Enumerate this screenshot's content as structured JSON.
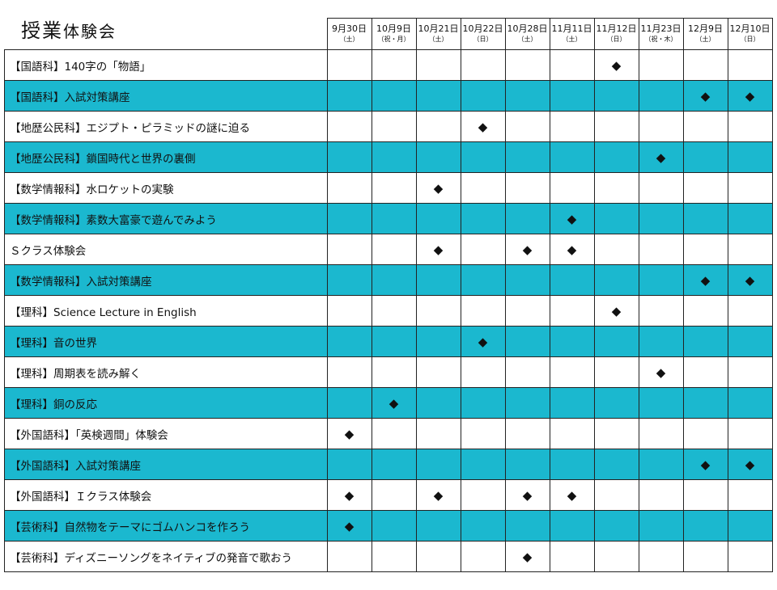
{
  "title_main": "授業",
  "title_sub": "体験会",
  "colors": {
    "teal": "#1bb8cf"
  },
  "marker_icon": "black-diamond",
  "dates": [
    {
      "date": "9月30日",
      "weekday": "（土）"
    },
    {
      "date": "10月9日",
      "weekday": "（祝・月）"
    },
    {
      "date": "10月21日",
      "weekday": "（土）"
    },
    {
      "date": "10月22日",
      "weekday": "（日）"
    },
    {
      "date": "10月28日",
      "weekday": "（土）"
    },
    {
      "date": "11月11日",
      "weekday": "（土）"
    },
    {
      "date": "11月12日",
      "weekday": "（日）"
    },
    {
      "date": "11月23日",
      "weekday": "（祝・木）"
    },
    {
      "date": "12月9日",
      "weekday": "（土）"
    },
    {
      "date": "12月10日",
      "weekday": "（日）"
    }
  ],
  "rows": [
    {
      "label": "【国語科】140字の「物語」",
      "marks": [
        6
      ]
    },
    {
      "label": "【国語科】入試対策講座",
      "marks": [
        8,
        9
      ]
    },
    {
      "label": "【地歴公民科】エジプト・ピラミッドの謎に迫る",
      "marks": [
        3
      ]
    },
    {
      "label": "【地歴公民科】鎖国時代と世界の裏側",
      "marks": [
        7
      ]
    },
    {
      "label": "【数学情報科】水ロケットの実験",
      "marks": [
        2
      ]
    },
    {
      "label": "【数学情報科】素数大富豪で遊んでみよう",
      "marks": [
        5
      ]
    },
    {
      "label": "Ｓクラス体験会",
      "marks": [
        2,
        4,
        5
      ]
    },
    {
      "label": "【数学情報科】入試対策講座",
      "marks": [
        8,
        9
      ]
    },
    {
      "label": "【理科】Science Lecture in English",
      "marks": [
        6
      ]
    },
    {
      "label": "【理科】音の世界",
      "marks": [
        3
      ]
    },
    {
      "label": "【理科】周期表を読み解く",
      "marks": [
        7
      ]
    },
    {
      "label": "【理科】銅の反応",
      "marks": [
        1
      ]
    },
    {
      "label": "【外国語科】「英検週間」体験会",
      "marks": [
        0
      ]
    },
    {
      "label": "【外国語科】入試対策講座",
      "marks": [
        8,
        9
      ]
    },
    {
      "label": "【外国語科】Ｉクラス体験会",
      "marks": [
        0,
        2,
        4,
        5
      ]
    },
    {
      "label": "【芸術科】自然物をテーマにゴムハンコを作ろう",
      "marks": [
        0
      ]
    },
    {
      "label": "【芸術科】ディズニーソングをネイティブの発音で歌おう",
      "marks": [
        4
      ]
    }
  ]
}
